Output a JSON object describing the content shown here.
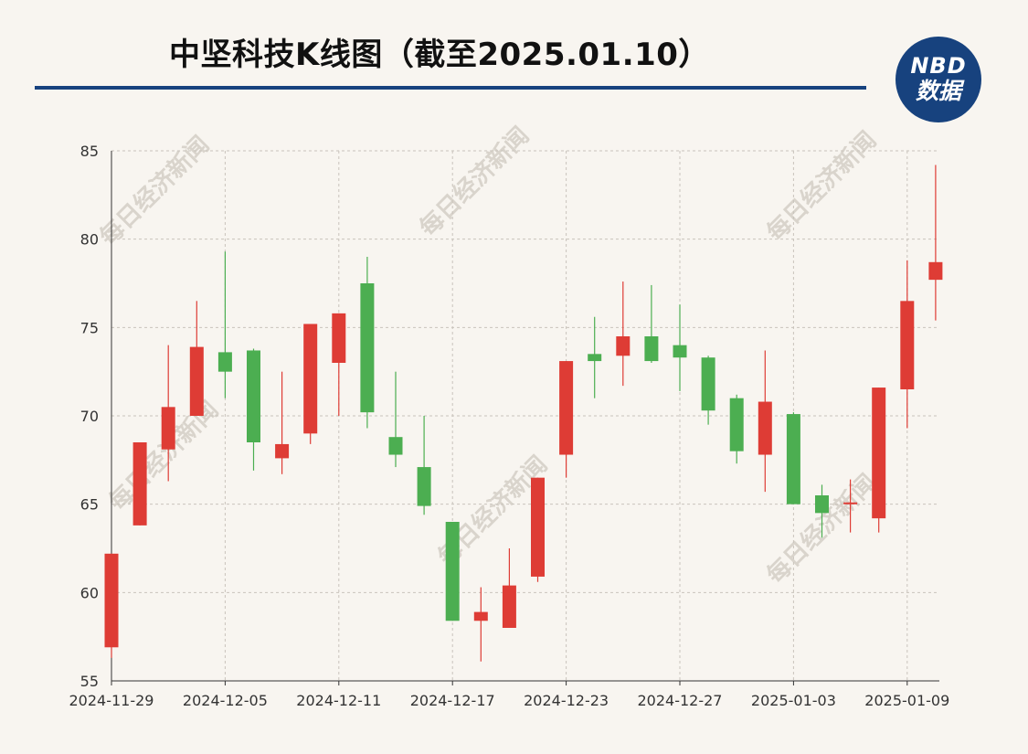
{
  "title": "中坚科技K线图（截至2025.01.10）",
  "logo": {
    "top": "NBD",
    "bottom": "数据"
  },
  "watermark": "每日经济新闻",
  "colors": {
    "up": "#de3c35",
    "down": "#4cae51",
    "accent": "#17427e",
    "background": "#f8f5f0"
  },
  "chart_data": {
    "type": "candlestick",
    "ylim": [
      55,
      85
    ],
    "yticks": [
      55,
      60,
      65,
      70,
      75,
      80,
      85
    ],
    "xtick_labels": [
      "2024-11-29",
      "2024-12-05",
      "2024-12-11",
      "2024-12-17",
      "2024-12-23",
      "2024-12-27",
      "2025-01-03",
      "2025-01-09"
    ],
    "xtick_index": [
      0,
      4,
      8,
      12,
      16,
      20,
      24,
      28
    ],
    "grid": true,
    "candles": [
      {
        "open": 56.9,
        "close": 62.2,
        "high": 62.2,
        "low": 56.3
      },
      {
        "open": 63.8,
        "close": 68.5,
        "high": 68.5,
        "low": 63.8
      },
      {
        "open": 68.1,
        "close": 70.5,
        "high": 74.0,
        "low": 66.3
      },
      {
        "open": 70.0,
        "close": 73.9,
        "high": 76.5,
        "low": 70.0
      },
      {
        "open": 73.6,
        "close": 72.5,
        "high": 79.3,
        "low": 71.0
      },
      {
        "open": 73.7,
        "close": 68.5,
        "high": 73.8,
        "low": 66.9
      },
      {
        "open": 67.6,
        "close": 68.4,
        "high": 72.5,
        "low": 66.7
      },
      {
        "open": 69.0,
        "close": 75.2,
        "high": 75.2,
        "low": 68.4
      },
      {
        "open": 73.0,
        "close": 75.8,
        "high": 75.8,
        "low": 70.0
      },
      {
        "open": 77.5,
        "close": 70.2,
        "high": 79.0,
        "low": 69.3
      },
      {
        "open": 68.8,
        "close": 67.8,
        "high": 72.5,
        "low": 67.1
      },
      {
        "open": 67.1,
        "close": 64.9,
        "high": 70.0,
        "low": 64.4
      },
      {
        "open": 64.0,
        "close": 58.4,
        "high": 64.0,
        "low": 58.4
      },
      {
        "open": 58.4,
        "close": 58.9,
        "high": 60.3,
        "low": 56.1
      },
      {
        "open": 58.0,
        "close": 60.4,
        "high": 62.5,
        "low": 58.0
      },
      {
        "open": 60.9,
        "close": 66.5,
        "high": 66.5,
        "low": 60.6
      },
      {
        "open": 67.8,
        "close": 73.1,
        "high": 73.1,
        "low": 66.5
      },
      {
        "open": 73.5,
        "close": 73.1,
        "high": 75.6,
        "low": 71.0
      },
      {
        "open": 73.4,
        "close": 74.5,
        "high": 77.6,
        "low": 71.7
      },
      {
        "open": 74.5,
        "close": 73.1,
        "high": 77.4,
        "low": 73.0
      },
      {
        "open": 74.0,
        "close": 73.3,
        "high": 76.3,
        "low": 71.4
      },
      {
        "open": 73.3,
        "close": 70.3,
        "high": 73.4,
        "low": 69.5
      },
      {
        "open": 71.0,
        "close": 68.0,
        "high": 71.2,
        "low": 67.3
      },
      {
        "open": 67.8,
        "close": 70.8,
        "high": 73.7,
        "low": 65.7
      },
      {
        "open": 70.1,
        "close": 65.0,
        "high": 70.2,
        "low": 65.0
      },
      {
        "open": 65.5,
        "close": 64.5,
        "high": 66.1,
        "low": 63.1
      },
      {
        "open": 65.0,
        "close": 65.1,
        "high": 66.4,
        "low": 63.4
      },
      {
        "open": 64.2,
        "close": 71.6,
        "high": 71.6,
        "low": 63.4
      },
      {
        "open": 71.5,
        "close": 76.5,
        "high": 78.8,
        "low": 69.3
      },
      {
        "open": 77.7,
        "close": 78.7,
        "high": 84.2,
        "low": 75.4
      }
    ]
  }
}
